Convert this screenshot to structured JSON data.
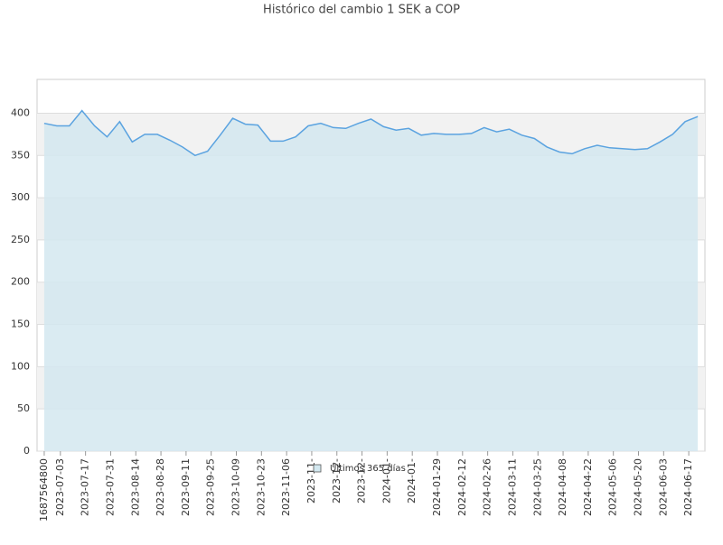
{
  "chart_data": {
    "type": "area-line",
    "title": "Histórico del cambio 1 SEK a COP",
    "x": [
      "2023-06-24",
      "2023-07-01",
      "2023-07-08",
      "2023-07-15",
      "2023-07-22",
      "2023-07-29",
      "2023-08-05",
      "2023-08-12",
      "2023-08-19",
      "2023-08-26",
      "2023-09-02",
      "2023-09-09",
      "2023-09-16",
      "2023-09-23",
      "2023-09-30",
      "2023-10-07",
      "2023-10-14",
      "2023-10-21",
      "2023-10-28",
      "2023-11-04",
      "2023-11-11",
      "2023-11-18",
      "2023-11-25",
      "2023-12-02",
      "2023-12-09",
      "2023-12-16",
      "2023-12-23",
      "2023-12-30",
      "2024-01-06",
      "2024-01-13",
      "2024-01-20",
      "2024-01-27",
      "2024-02-03",
      "2024-02-10",
      "2024-02-17",
      "2024-02-24",
      "2024-03-02",
      "2024-03-09",
      "2024-03-16",
      "2024-03-23",
      "2024-03-30",
      "2024-04-06",
      "2024-04-13",
      "2024-04-20",
      "2024-04-27",
      "2024-05-04",
      "2024-05-11",
      "2024-05-18",
      "2024-05-25",
      "2024-06-01",
      "2024-06-08",
      "2024-06-15",
      "2024-06-22"
    ],
    "series": [
      {
        "name": "Últimos 365 días",
        "color": "#5ba3e0",
        "fill": "#d3e8f0",
        "values": [
          388,
          385,
          385,
          403,
          385,
          372,
          390,
          366,
          375,
          375,
          368,
          360,
          350,
          355,
          374,
          394,
          387,
          386,
          367,
          367,
          372,
          385,
          388,
          383,
          382,
          388,
          393,
          384,
          380,
          382,
          374,
          376,
          375,
          375,
          376,
          383,
          378,
          381,
          374,
          370,
          360,
          354,
          352,
          358,
          362,
          359,
          358,
          357,
          358,
          366,
          375,
          390,
          396
        ]
      }
    ],
    "xlim": [
      "2023-06-20",
      "2024-06-26"
    ],
    "xticks": [
      {
        "value": "2023-06-24",
        "label": "1687564800"
      },
      {
        "value": "2023-07-03",
        "label": "2023-07-03"
      },
      {
        "value": "2023-07-17",
        "label": "2023-07-17"
      },
      {
        "value": "2023-07-31",
        "label": "2023-07-31"
      },
      {
        "value": "2023-08-14",
        "label": "2023-08-14"
      },
      {
        "value": "2023-08-28",
        "label": "2023-08-28"
      },
      {
        "value": "2023-09-11",
        "label": "2023-09-11"
      },
      {
        "value": "2023-09-25",
        "label": "2023-09-25"
      },
      {
        "value": "2023-10-09",
        "label": "2023-10-09"
      },
      {
        "value": "2023-10-23",
        "label": "2023-10-23"
      },
      {
        "value": "2023-11-06",
        "label": "2023-11-06"
      },
      {
        "value": "2023-11-20",
        "label": "2023-11-"
      },
      {
        "value": "2023-12-04",
        "label": "2023-12-"
      },
      {
        "value": "2023-12-18",
        "label": "2023-12-"
      },
      {
        "value": "2024-01-01",
        "label": "2024-01-"
      },
      {
        "value": "2024-01-15",
        "label": "2024-01-"
      },
      {
        "value": "2024-01-29",
        "label": "2024-01-29"
      },
      {
        "value": "2024-02-12",
        "label": "2024-02-12"
      },
      {
        "value": "2024-02-26",
        "label": "2024-02-26"
      },
      {
        "value": "2024-03-11",
        "label": "2024-03-11"
      },
      {
        "value": "2024-03-25",
        "label": "2024-03-25"
      },
      {
        "value": "2024-04-08",
        "label": "2024-04-08"
      },
      {
        "value": "2024-04-22",
        "label": "2024-04-22"
      },
      {
        "value": "2024-05-06",
        "label": "2024-05-06"
      },
      {
        "value": "2024-05-20",
        "label": "2024-05-20"
      },
      {
        "value": "2024-06-03",
        "label": "2024-06-03"
      },
      {
        "value": "2024-06-17",
        "label": "2024-06-17"
      }
    ],
    "ylim": [
      0,
      440
    ],
    "yticks": [
      0,
      50,
      100,
      150,
      200,
      250,
      300,
      350,
      400
    ],
    "grid": true
  }
}
